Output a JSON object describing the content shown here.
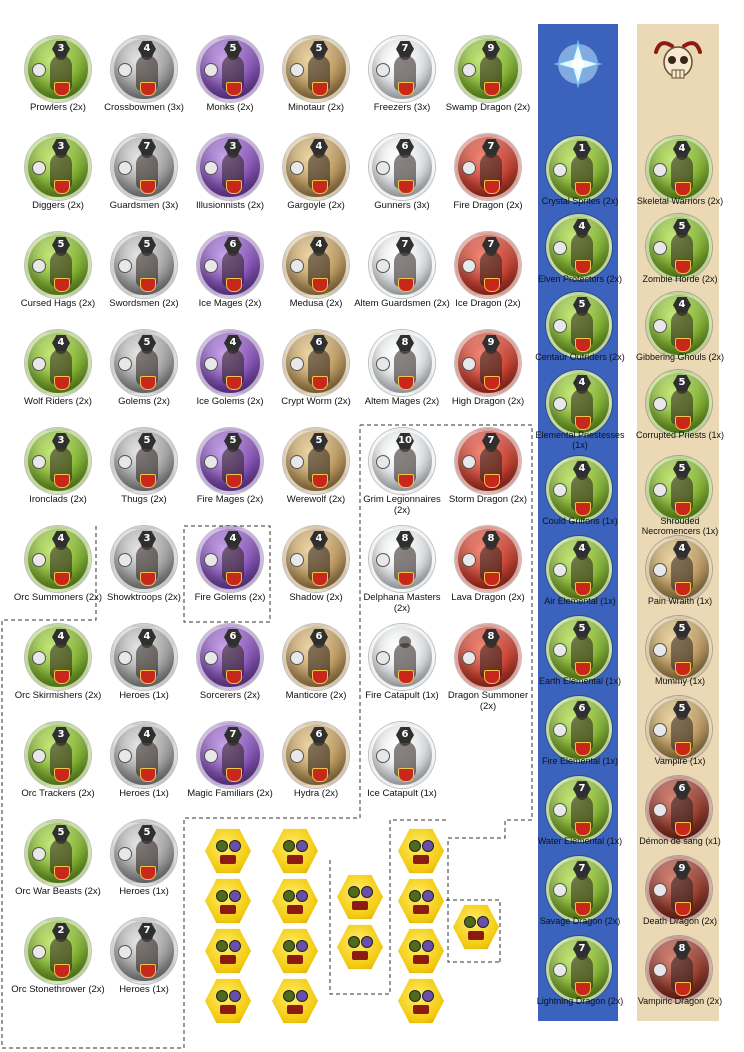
{
  "colors": {
    "elves_panel": "#3b63bd",
    "undead_panel": "#ead9b4",
    "dashed_border": "#333333",
    "card_yellow": "#f2c90e"
  },
  "emblems": {
    "elves": "crystal-tree-emblem",
    "undead": "horned-skull-emblem"
  },
  "units": [
    {
      "label": "Prowlers (2x)",
      "number": "3",
      "color": "green"
    },
    {
      "label": "Crossbowmen (3x)",
      "number": "4",
      "color": "grey"
    },
    {
      "label": "Monks (2x)",
      "number": "5",
      "color": "purple"
    },
    {
      "label": "Minotaur (2x)",
      "number": "5",
      "color": "tan"
    },
    {
      "label": "Freezers (3x)",
      "number": "7",
      "color": "white"
    },
    {
      "label": "Swamp Dragon (2x)",
      "number": "9",
      "color": "green"
    },
    {
      "label": "Diggers (2x)",
      "number": "3",
      "color": "green"
    },
    {
      "label": "Guardsmen (3x)",
      "number": "7",
      "color": "grey"
    },
    {
      "label": "Illusionnists (2x)",
      "number": "3",
      "color": "purple"
    },
    {
      "label": "Gargoyle (2x)",
      "number": "4",
      "color": "tan"
    },
    {
      "label": "Gunners (3x)",
      "number": "6",
      "color": "white"
    },
    {
      "label": "Fire Dragon (2x)",
      "number": "7",
      "color": "red"
    },
    {
      "label": "Cursed Hags (2x)",
      "number": "5",
      "color": "green"
    },
    {
      "label": "Swordsmen (2x)",
      "number": "5",
      "color": "grey"
    },
    {
      "label": "Ice Mages (2x)",
      "number": "6",
      "color": "purple"
    },
    {
      "label": "Medusa (2x)",
      "number": "4",
      "color": "tan"
    },
    {
      "label": "Altem Guardsmen (2x)",
      "number": "7",
      "color": "white"
    },
    {
      "label": "Ice Dragon (2x)",
      "number": "7",
      "color": "red"
    },
    {
      "label": "Wolf Riders (2x)",
      "number": "4",
      "color": "green"
    },
    {
      "label": "Golems (2x)",
      "number": "5",
      "color": "grey"
    },
    {
      "label": "Ice Golems (2x)",
      "number": "4",
      "color": "purple"
    },
    {
      "label": "Crypt Worm (2x)",
      "number": "6",
      "color": "tan"
    },
    {
      "label": "Altem Mages (2x)",
      "number": "8",
      "color": "white"
    },
    {
      "label": "High Dragon (2x)",
      "number": "9",
      "color": "red"
    },
    {
      "label": "Ironclads (2x)",
      "number": "3",
      "color": "green"
    },
    {
      "label": "Thugs (2x)",
      "number": "5",
      "color": "grey"
    },
    {
      "label": "Fire Mages (2x)",
      "number": "5",
      "color": "purple"
    },
    {
      "label": "Werewolf (2x)",
      "number": "5",
      "color": "tan"
    },
    {
      "label": "Grim Legionnaires (2x)",
      "number": "10",
      "color": "white"
    },
    {
      "label": "Storm Dragon (2x)",
      "number": "7",
      "color": "red"
    },
    {
      "label": "Orc Summoners (2x)",
      "number": "4",
      "color": "green"
    },
    {
      "label": "Showktroops (2x)",
      "number": "3",
      "color": "grey"
    },
    {
      "label": "Fire Golems (2x)",
      "number": "4",
      "color": "purple"
    },
    {
      "label": "Shadow (2x)",
      "number": "4",
      "color": "tan"
    },
    {
      "label": "Delphana Masters (2x)",
      "number": "8",
      "color": "white"
    },
    {
      "label": "Lava Dragon (2x)",
      "number": "8",
      "color": "red"
    },
    {
      "label": "Orc Skirmishers (2x)",
      "number": "4",
      "color": "green"
    },
    {
      "label": "Heroes (1x)",
      "number": "4",
      "color": "grey"
    },
    {
      "label": "Sorcerers (2x)",
      "number": "6",
      "color": "purple"
    },
    {
      "label": "Manticore (2x)",
      "number": "6",
      "color": "tan"
    },
    {
      "label": "Fire Catapult (1x)",
      "number": "",
      "color": "white"
    },
    {
      "label": "Dragon Summoner (2x)",
      "number": "8",
      "color": "red"
    },
    {
      "label": "Orc Trackers (2x)",
      "number": "3",
      "color": "green"
    },
    {
      "label": "Heroes (1x)",
      "number": "4",
      "color": "grey"
    },
    {
      "label": "Magic Familiars (2x)",
      "number": "7",
      "color": "purple"
    },
    {
      "label": "Hydra (2x)",
      "number": "6",
      "color": "tan"
    },
    {
      "label": "Ice Catapult (1x)",
      "number": "6",
      "color": "white"
    },
    {
      "label": "Orc War Beasts (2x)",
      "number": "5",
      "color": "green"
    },
    {
      "label": "Heroes (1x)",
      "number": "5",
      "color": "grey"
    },
    {
      "label": "Orc Stonethrower (2x)",
      "number": "2",
      "color": "green"
    },
    {
      "label": "Heroes (1x)",
      "number": "7",
      "color": "grey"
    }
  ],
  "elves": [
    {
      "label": "Crystal Sprites (2x)",
      "number": "1"
    },
    {
      "label": "Elven Protectors (2x)",
      "number": "4"
    },
    {
      "label": "Centaur Outriders (2x)",
      "number": "5"
    },
    {
      "label": "Elemental Priestesses (1x)",
      "number": "4"
    },
    {
      "label": "Could Griffons (1x)",
      "number": "4"
    },
    {
      "label": "Air Elemental (1x)",
      "number": "4"
    },
    {
      "label": "Earth Elemental (1x)",
      "number": "5"
    },
    {
      "label": "Fire Elemental (1x)",
      "number": "6"
    },
    {
      "label": "Water Elemental (1x)",
      "number": "7"
    },
    {
      "label": "Savage Dragon (2x)",
      "number": "7"
    },
    {
      "label": "Lightning Dragon (2x)",
      "number": "7"
    }
  ],
  "undead": [
    {
      "label": "Skeletal Warriors (2x)",
      "number": "4"
    },
    {
      "label": "Zombie Horde (2x)",
      "number": "5"
    },
    {
      "label": "Gibbering Ghouls (2x)",
      "number": "4"
    },
    {
      "label": "Corrupted Priests (1x)",
      "number": "5"
    },
    {
      "label": "Shrouded Necromencers (1x)",
      "number": "5"
    },
    {
      "label": "Pain Wraith (1x)",
      "number": "4"
    },
    {
      "label": "Mummy (1x)",
      "number": "5"
    },
    {
      "label": "Vampire (1x)",
      "number": "5"
    },
    {
      "label": "Démon de sang (x1)",
      "number": "6"
    },
    {
      "label": "Death Dragon (2x)",
      "number": "9"
    },
    {
      "label": "Vampiric Dragon (2x)",
      "number": "8"
    }
  ]
}
